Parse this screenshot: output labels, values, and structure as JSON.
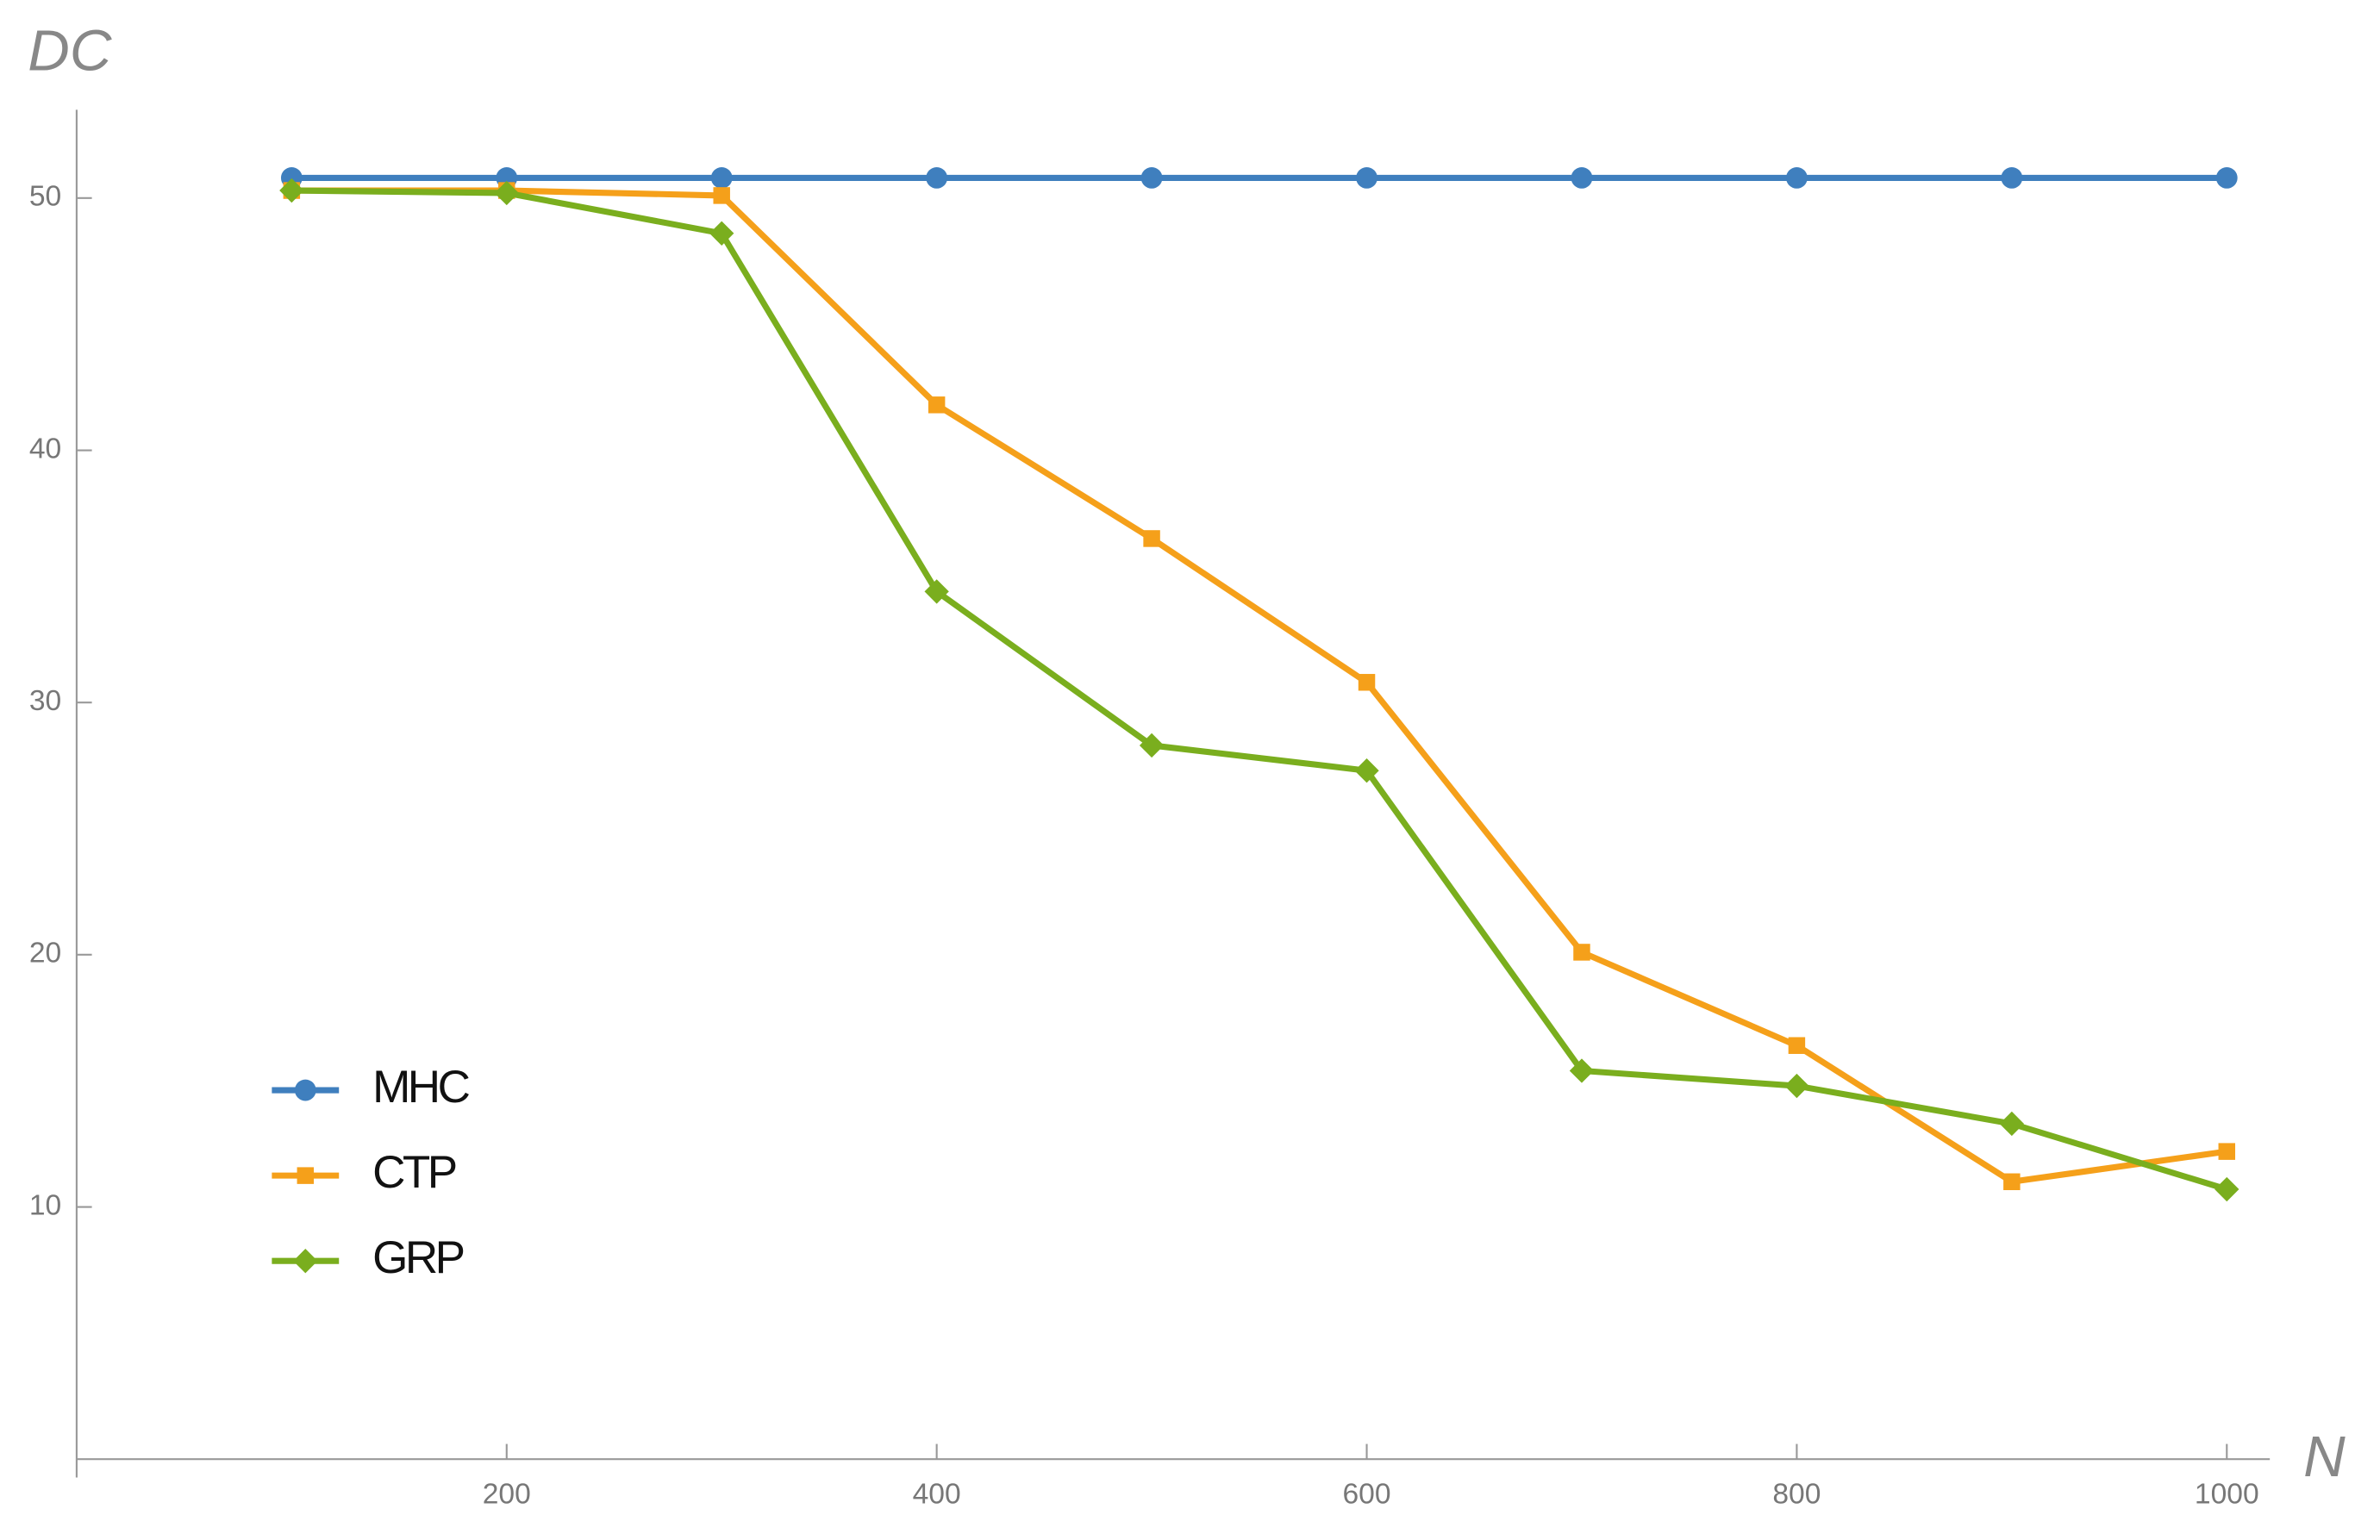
{
  "chart_data": {
    "type": "line",
    "y_label": "DC",
    "x_label": "N",
    "x": [
      100,
      200,
      300,
      400,
      500,
      600,
      700,
      800,
      900,
      1000
    ],
    "series": [
      {
        "name": "MHC",
        "color": "#3f7fbe",
        "marker": "circle",
        "values": [
          50.8,
          50.8,
          50.8,
          50.8,
          50.8,
          50.8,
          50.8,
          50.8,
          50.8,
          50.8
        ]
      },
      {
        "name": "CTP",
        "color": "#f5a01a",
        "marker": "square",
        "values": [
          50.3,
          50.3,
          50.1,
          41.8,
          36.5,
          30.8,
          20.1,
          16.4,
          11.0,
          12.2
        ]
      },
      {
        "name": "GRP",
        "color": "#7aae1e",
        "marker": "diamond",
        "values": [
          50.3,
          50.2,
          48.6,
          34.4,
          28.3,
          27.3,
          15.4,
          14.8,
          13.3,
          10.7
        ]
      }
    ],
    "xlim": [
      0,
      1020
    ],
    "ylim": [
      0,
      53.5
    ],
    "xticks": [
      200,
      400,
      600,
      800,
      1000
    ],
    "yticks": [
      10,
      20,
      30,
      40,
      50
    ],
    "legend": "lower-left",
    "grid": false
  }
}
